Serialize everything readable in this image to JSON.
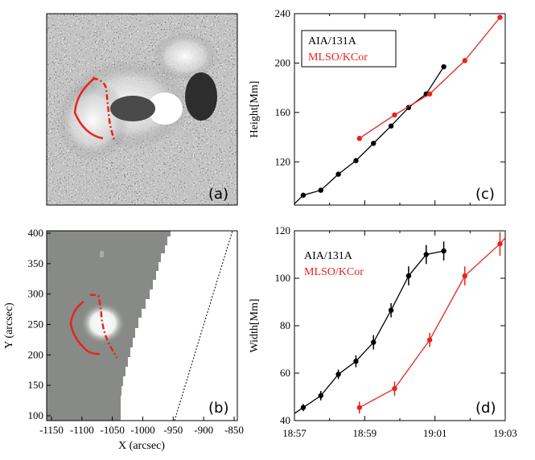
{
  "panels": {
    "a": {
      "letter": "(a)"
    },
    "b": {
      "letter": "(b)",
      "xlabel": "X (arcsec)",
      "ylabel": "Y (arcsec)",
      "xticks": [
        "-1150",
        "-1100",
        "-1050",
        "-1000",
        "-950",
        "-900",
        "-850"
      ],
      "yticks": [
        "100",
        "150",
        "200",
        "250",
        "300",
        "350",
        "400"
      ]
    },
    "c": {
      "letter": "(c)"
    },
    "d": {
      "letter": "(d)"
    }
  },
  "chart_data": [
    {
      "panel": "c",
      "type": "line",
      "xlabel": "",
      "ylabel": "Height[Mm]",
      "xlim_minutes": [
        0,
        6
      ],
      "ylim": [
        85,
        240
      ],
      "yticks": [
        "120",
        "160",
        "200",
        "240"
      ],
      "series": [
        {
          "name": "AIA/131A",
          "color": "#000000",
          "x_minutes": [
            0.25,
            0.75,
            1.25,
            1.75,
            2.25,
            2.75,
            3.25,
            3.75,
            4.25
          ],
          "values": [
            93,
            97,
            110,
            121,
            135,
            149,
            164,
            175,
            197
          ]
        },
        {
          "name": "MLSO/KCor",
          "color": "#e8231e",
          "x_minutes": [
            1.85,
            2.85,
            3.85,
            4.85,
            5.85
          ],
          "values": [
            139,
            158,
            175,
            202,
            237
          ]
        }
      ]
    },
    {
      "panel": "d",
      "type": "line",
      "xlabel": "",
      "ylabel": "Width[Mm]",
      "xlim_minutes": [
        0,
        6
      ],
      "ylim": [
        40,
        120
      ],
      "xticks": [
        "18:57",
        "18:59",
        "19:01",
        "19:03"
      ],
      "yticks": [
        "40",
        "60",
        "80",
        "100",
        "120"
      ],
      "series": [
        {
          "name": "AIA/131A",
          "color": "#000000",
          "x_minutes": [
            0.25,
            0.75,
            1.25,
            1.75,
            2.25,
            2.75,
            3.25,
            3.75,
            4.25
          ],
          "values": [
            45.5,
            50.5,
            59.5,
            65,
            73,
            86.5,
            101,
            110,
            111.5
          ],
          "errors": [
            1.5,
            2,
            2,
            2.5,
            3,
            3,
            4,
            4,
            4
          ]
        },
        {
          "name": "MLSO/KCor",
          "color": "#e8231e",
          "x_minutes": [
            1.85,
            2.85,
            3.85,
            4.85,
            5.85
          ],
          "values": [
            45.5,
            53.5,
            74,
            101,
            114.5
          ],
          "errors": [
            2.5,
            3,
            3,
            4,
            5
          ]
        }
      ]
    }
  ]
}
